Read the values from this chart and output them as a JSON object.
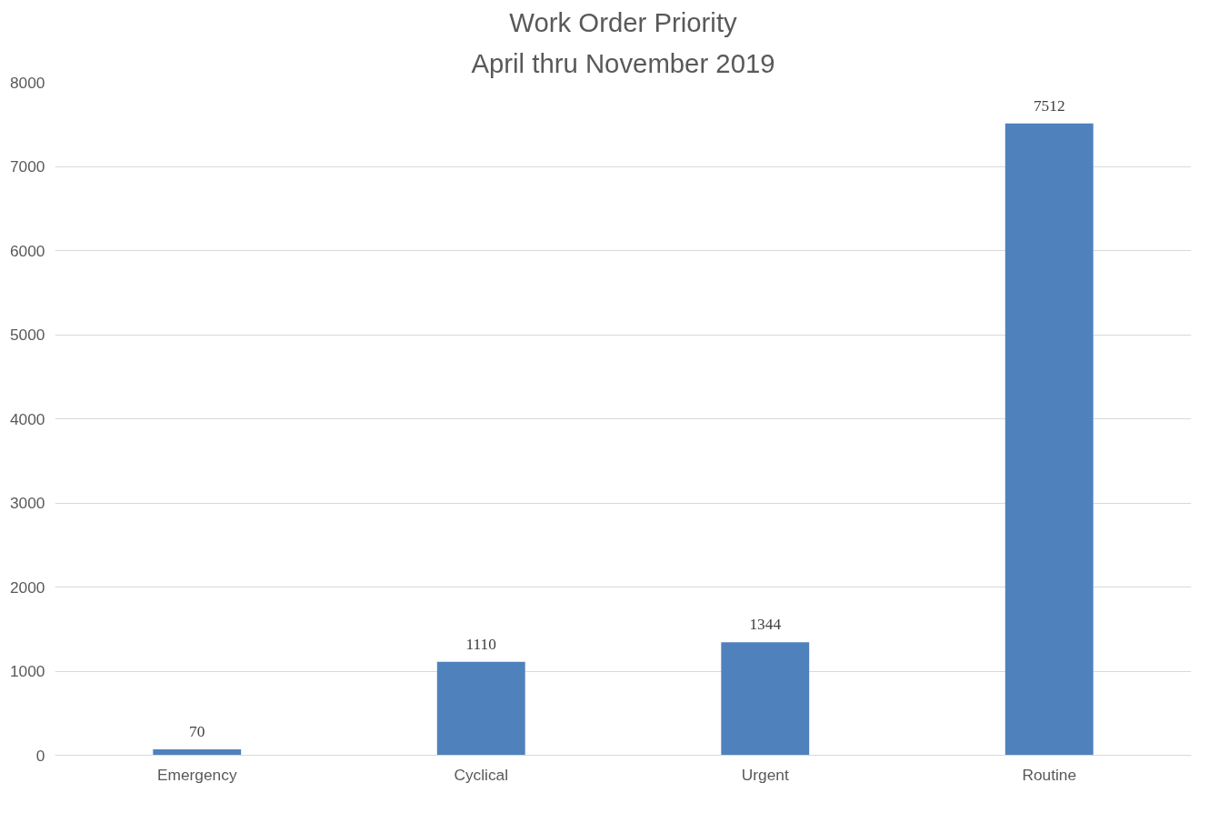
{
  "chart_data": {
    "type": "bar",
    "title": "Work Order Priority",
    "subtitle": "April thru November 2019",
    "categories": [
      "Emergency",
      "Cyclical",
      "Urgent",
      "Routine"
    ],
    "values": [
      70,
      1110,
      1344,
      7512
    ],
    "color": "#4f81bd",
    "ylim": [
      0,
      8000
    ],
    "yticks": [
      0,
      1000,
      2000,
      3000,
      4000,
      5000,
      6000,
      7000,
      8000
    ],
    "grid": "y",
    "data_labels": true
  }
}
